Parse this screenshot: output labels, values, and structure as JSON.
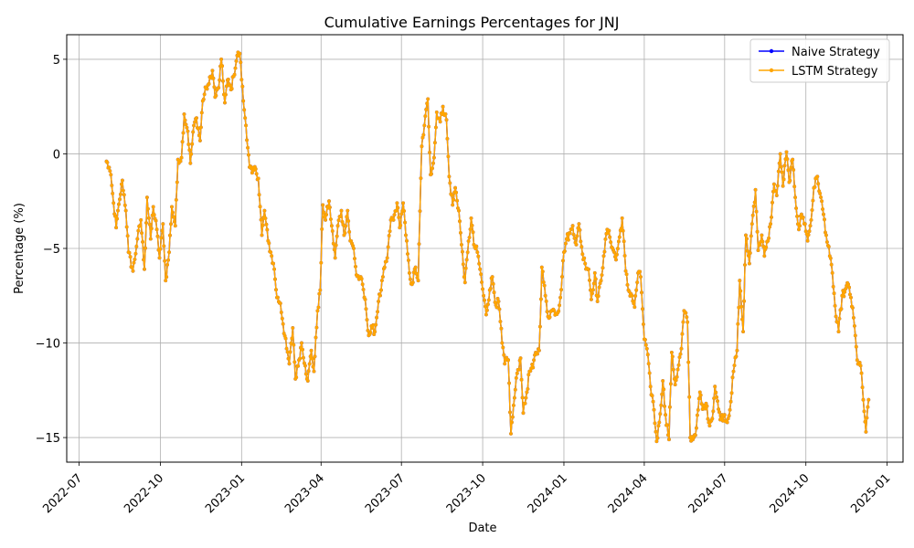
{
  "chart_data": {
    "type": "line",
    "title": "Cumulative Earnings Percentages for JNJ",
    "xlabel": "Date",
    "ylabel": "Percentage (%)",
    "xlim": [
      "2022-06-17",
      "2025-01-19"
    ],
    "ylim": [
      -16.3,
      6.3
    ],
    "x_ticks": [
      "2022-07",
      "2022-10",
      "2023-01",
      "2023-04",
      "2023-07",
      "2023-10",
      "2024-01",
      "2024-04",
      "2024-07",
      "2024-10",
      "2025-01"
    ],
    "y_ticks": [
      5,
      0,
      -5,
      -10,
      -15
    ],
    "y_tick_labels": [
      "5",
      "0",
      "−5",
      "−10",
      "−15"
    ],
    "grid": true,
    "legend_position": "top-right",
    "colors": {
      "naive": "#0000ff",
      "lstm": "#ffa500"
    },
    "anchors": [
      [
        "2022-08-01",
        -0.4
      ],
      [
        "2022-08-05",
        -0.9
      ],
      [
        "2022-08-09",
        -2.6
      ],
      [
        "2022-08-12",
        -3.9
      ],
      [
        "2022-08-16",
        -2.4
      ],
      [
        "2022-08-19",
        -1.4
      ],
      [
        "2022-08-23",
        -3.0
      ],
      [
        "2022-08-26",
        -5.2
      ],
      [
        "2022-08-31",
        -6.2
      ],
      [
        "2022-09-05",
        -4.5
      ],
      [
        "2022-09-09",
        -3.5
      ],
      [
        "2022-09-13",
        -6.1
      ],
      [
        "2022-09-16",
        -2.3
      ],
      [
        "2022-09-20",
        -4.5
      ],
      [
        "2022-09-23",
        -2.8
      ],
      [
        "2022-09-27",
        -4.0
      ],
      [
        "2022-09-30",
        -5.5
      ],
      [
        "2022-10-04",
        -3.7
      ],
      [
        "2022-10-07",
        -6.7
      ],
      [
        "2022-10-11",
        -5.2
      ],
      [
        "2022-10-14",
        -2.8
      ],
      [
        "2022-10-18",
        -3.8
      ],
      [
        "2022-10-21",
        -0.3
      ],
      [
        "2022-10-25",
        -0.2
      ],
      [
        "2022-10-28",
        2.1
      ],
      [
        "2022-11-01",
        1.2
      ],
      [
        "2022-11-04",
        -0.5
      ],
      [
        "2022-11-08",
        1.5
      ],
      [
        "2022-11-11",
        1.9
      ],
      [
        "2022-11-15",
        0.7
      ],
      [
        "2022-11-18",
        2.8
      ],
      [
        "2022-11-22",
        3.5
      ],
      [
        "2022-11-25",
        3.7
      ],
      [
        "2022-11-29",
        4.4
      ],
      [
        "2022-12-02",
        3.0
      ],
      [
        "2022-12-06",
        3.5
      ],
      [
        "2022-12-09",
        5.0
      ],
      [
        "2022-12-13",
        2.7
      ],
      [
        "2022-12-16",
        3.9
      ],
      [
        "2022-12-20",
        3.4
      ],
      [
        "2022-12-23",
        4.1
      ],
      [
        "2022-12-27",
        5.2
      ],
      [
        "2022-12-30",
        5.3
      ],
      [
        "2023-01-03",
        2.8
      ],
      [
        "2023-01-06",
        1.5
      ],
      [
        "2023-01-10",
        -0.7
      ],
      [
        "2023-01-13",
        -1.0
      ],
      [
        "2023-01-17",
        -0.8
      ],
      [
        "2023-01-20",
        -1.3
      ],
      [
        "2023-01-24",
        -4.3
      ],
      [
        "2023-01-27",
        -3.0
      ],
      [
        "2023-01-31",
        -4.6
      ],
      [
        "2023-02-03",
        -5.2
      ],
      [
        "2023-02-07",
        -6.1
      ],
      [
        "2023-02-10",
        -7.6
      ],
      [
        "2023-02-14",
        -7.9
      ],
      [
        "2023-02-17",
        -9.0
      ],
      [
        "2023-02-21",
        -10.3
      ],
      [
        "2023-02-24",
        -11.1
      ],
      [
        "2023-02-28",
        -9.2
      ],
      [
        "2023-03-03",
        -11.9
      ],
      [
        "2023-03-07",
        -10.9
      ],
      [
        "2023-03-10",
        -10.0
      ],
      [
        "2023-03-14",
        -11.2
      ],
      [
        "2023-03-17",
        -12.0
      ],
      [
        "2023-03-21",
        -10.4
      ],
      [
        "2023-03-24",
        -11.5
      ],
      [
        "2023-03-28",
        -8.3
      ],
      [
        "2023-03-31",
        -7.2
      ],
      [
        "2023-04-03",
        -2.7
      ],
      [
        "2023-04-06",
        -3.5
      ],
      [
        "2023-04-10",
        -2.5
      ],
      [
        "2023-04-13",
        -3.8
      ],
      [
        "2023-04-17",
        -5.5
      ],
      [
        "2023-04-20",
        -3.8
      ],
      [
        "2023-04-24",
        -3.0
      ],
      [
        "2023-04-27",
        -4.3
      ],
      [
        "2023-05-01",
        -3.0
      ],
      [
        "2023-05-04",
        -4.6
      ],
      [
        "2023-05-08",
        -5.0
      ],
      [
        "2023-05-11",
        -6.4
      ],
      [
        "2023-05-15",
        -6.6
      ],
      [
        "2023-05-18",
        -6.9
      ],
      [
        "2023-05-22",
        -8.2
      ],
      [
        "2023-05-25",
        -9.6
      ],
      [
        "2023-05-29",
        -9.2
      ],
      [
        "2023-06-01",
        -9.4
      ],
      [
        "2023-06-05",
        -7.8
      ],
      [
        "2023-06-08",
        -7.2
      ],
      [
        "2023-06-12",
        -6.0
      ],
      [
        "2023-06-15",
        -5.5
      ],
      [
        "2023-06-19",
        -3.5
      ],
      [
        "2023-06-22",
        -3.5
      ],
      [
        "2023-06-26",
        -2.6
      ],
      [
        "2023-06-29",
        -3.9
      ],
      [
        "2023-07-03",
        -2.6
      ],
      [
        "2023-07-06",
        -4.3
      ],
      [
        "2023-07-10",
        -6.3
      ],
      [
        "2023-07-13",
        -6.9
      ],
      [
        "2023-07-17",
        -6.0
      ],
      [
        "2023-07-20",
        -6.7
      ],
      [
        "2023-07-24",
        0.4
      ],
      [
        "2023-07-27",
        1.5
      ],
      [
        "2023-07-31",
        2.9
      ],
      [
        "2023-08-03",
        -1.1
      ],
      [
        "2023-08-07",
        -0.2
      ],
      [
        "2023-08-10",
        2.2
      ],
      [
        "2023-08-14",
        1.7
      ],
      [
        "2023-08-17",
        2.5
      ],
      [
        "2023-08-21",
        1.8
      ],
      [
        "2023-08-24",
        -1.2
      ],
      [
        "2023-08-28",
        -2.7
      ],
      [
        "2023-08-31",
        -1.8
      ],
      [
        "2023-09-04",
        -3.0
      ],
      [
        "2023-09-07",
        -4.8
      ],
      [
        "2023-09-11",
        -6.8
      ],
      [
        "2023-09-14",
        -5.2
      ],
      [
        "2023-09-18",
        -3.4
      ],
      [
        "2023-09-21",
        -4.8
      ],
      [
        "2023-09-25",
        -5.2
      ],
      [
        "2023-09-28",
        -6.1
      ],
      [
        "2023-10-02",
        -7.5
      ],
      [
        "2023-10-05",
        -8.5
      ],
      [
        "2023-10-09",
        -7.2
      ],
      [
        "2023-10-12",
        -6.5
      ],
      [
        "2023-10-16",
        -8.0
      ],
      [
        "2023-10-19",
        -7.8
      ],
      [
        "2023-10-23",
        -10.0
      ],
      [
        "2023-10-26",
        -11.1
      ],
      [
        "2023-10-30",
        -10.9
      ],
      [
        "2023-11-02",
        -14.8
      ],
      [
        "2023-11-06",
        -12.9
      ],
      [
        "2023-11-09",
        -11.6
      ],
      [
        "2023-11-13",
        -10.8
      ],
      [
        "2023-11-16",
        -13.7
      ],
      [
        "2023-11-20",
        -12.6
      ],
      [
        "2023-11-23",
        -11.5
      ],
      [
        "2023-11-27",
        -11.3
      ],
      [
        "2023-11-30",
        -10.5
      ],
      [
        "2023-12-04",
        -10.4
      ],
      [
        "2023-12-07",
        -6.0
      ],
      [
        "2023-12-11",
        -7.5
      ],
      [
        "2023-12-14",
        -8.6
      ],
      [
        "2023-12-18",
        -8.3
      ],
      [
        "2023-12-21",
        -8.3
      ],
      [
        "2023-12-25",
        -8.4
      ],
      [
        "2023-12-28",
        -7.6
      ],
      [
        "2024-01-01",
        -5.2
      ],
      [
        "2024-01-04",
        -4.5
      ],
      [
        "2024-01-08",
        -4.2
      ],
      [
        "2024-01-11",
        -3.8
      ],
      [
        "2024-01-15",
        -4.8
      ],
      [
        "2024-01-18",
        -3.7
      ],
      [
        "2024-01-22",
        -5.3
      ],
      [
        "2024-01-25",
        -5.8
      ],
      [
        "2024-01-29",
        -6.1
      ],
      [
        "2024-02-01",
        -7.7
      ],
      [
        "2024-02-05",
        -6.3
      ],
      [
        "2024-02-08",
        -7.8
      ],
      [
        "2024-02-12",
        -6.7
      ],
      [
        "2024-02-15",
        -5.4
      ],
      [
        "2024-02-19",
        -4.0
      ],
      [
        "2024-02-22",
        -4.4
      ],
      [
        "2024-02-26",
        -5.1
      ],
      [
        "2024-02-29",
        -5.6
      ],
      [
        "2024-03-04",
        -4.4
      ],
      [
        "2024-03-07",
        -3.4
      ],
      [
        "2024-03-11",
        -6.2
      ],
      [
        "2024-03-14",
        -7.2
      ],
      [
        "2024-03-18",
        -7.5
      ],
      [
        "2024-03-21",
        -8.1
      ],
      [
        "2024-03-25",
        -6.3
      ],
      [
        "2024-03-28",
        -6.5
      ],
      [
        "2024-04-01",
        -9.8
      ],
      [
        "2024-04-04",
        -10.3
      ],
      [
        "2024-04-08",
        -12.3
      ],
      [
        "2024-04-11",
        -13.1
      ],
      [
        "2024-04-15",
        -15.2
      ],
      [
        "2024-04-18",
        -14.2
      ],
      [
        "2024-04-22",
        -12.0
      ],
      [
        "2024-04-25",
        -13.8
      ],
      [
        "2024-04-29",
        -15.1
      ],
      [
        "2024-05-02",
        -10.5
      ],
      [
        "2024-05-06",
        -12.2
      ],
      [
        "2024-05-09",
        -11.4
      ],
      [
        "2024-05-13",
        -10.3
      ],
      [
        "2024-05-16",
        -8.3
      ],
      [
        "2024-05-20",
        -8.9
      ],
      [
        "2024-05-23",
        -15.0
      ],
      [
        "2024-05-27",
        -15.0
      ],
      [
        "2024-05-30",
        -14.5
      ],
      [
        "2024-06-03",
        -12.6
      ],
      [
        "2024-06-06",
        -13.5
      ],
      [
        "2024-06-10",
        -13.2
      ],
      [
        "2024-06-13",
        -14.2
      ],
      [
        "2024-06-17",
        -14.0
      ],
      [
        "2024-06-20",
        -12.3
      ],
      [
        "2024-06-24",
        -13.5
      ],
      [
        "2024-06-27",
        -14.0
      ],
      [
        "2024-07-01",
        -13.8
      ],
      [
        "2024-07-04",
        -14.2
      ],
      [
        "2024-07-08",
        -13.1
      ],
      [
        "2024-07-11",
        -11.5
      ],
      [
        "2024-07-15",
        -10.4
      ],
      [
        "2024-07-18",
        -6.7
      ],
      [
        "2024-07-22",
        -9.4
      ],
      [
        "2024-07-25",
        -4.3
      ],
      [
        "2024-07-29",
        -5.8
      ],
      [
        "2024-08-01",
        -3.7
      ],
      [
        "2024-08-05",
        -1.9
      ],
      [
        "2024-08-08",
        -5.1
      ],
      [
        "2024-08-12",
        -4.3
      ],
      [
        "2024-08-15",
        -5.4
      ],
      [
        "2024-08-19",
        -4.6
      ],
      [
        "2024-08-22",
        -3.7
      ],
      [
        "2024-08-26",
        -1.6
      ],
      [
        "2024-08-29",
        -2.2
      ],
      [
        "2024-09-02",
        0.0
      ],
      [
        "2024-09-05",
        -1.7
      ],
      [
        "2024-09-09",
        0.1
      ],
      [
        "2024-09-12",
        -1.5
      ],
      [
        "2024-09-16",
        -0.3
      ],
      [
        "2024-09-19",
        -2.3
      ],
      [
        "2024-09-23",
        -4.0
      ],
      [
        "2024-09-26",
        -3.2
      ],
      [
        "2024-09-30",
        -3.7
      ],
      [
        "2024-10-03",
        -4.6
      ],
      [
        "2024-10-07",
        -3.5
      ],
      [
        "2024-10-10",
        -1.8
      ],
      [
        "2024-10-14",
        -1.2
      ],
      [
        "2024-10-17",
        -2.1
      ],
      [
        "2024-10-21",
        -3.2
      ],
      [
        "2024-10-24",
        -4.3
      ],
      [
        "2024-10-28",
        -5.4
      ],
      [
        "2024-10-31",
        -6.3
      ],
      [
        "2024-11-04",
        -8.6
      ],
      [
        "2024-11-07",
        -9.4
      ],
      [
        "2024-11-11",
        -7.5
      ],
      [
        "2024-11-14",
        -7.3
      ],
      [
        "2024-11-18",
        -6.9
      ],
      [
        "2024-11-21",
        -7.6
      ],
      [
        "2024-11-25",
        -9.1
      ],
      [
        "2024-11-28",
        -10.9
      ],
      [
        "2024-12-02",
        -11.2
      ],
      [
        "2024-12-05",
        -13.0
      ],
      [
        "2024-12-08",
        -14.7
      ],
      [
        "2024-12-11",
        -13.0
      ]
    ],
    "series": [
      {
        "name": "Naive Strategy",
        "color": "#0000ff",
        "source": "anchors"
      },
      {
        "name": "LSTM Strategy",
        "color": "#ffa500",
        "source": "anchors"
      }
    ]
  },
  "legend": {
    "naive_label": "Naive Strategy",
    "lstm_label": "LSTM Strategy"
  }
}
